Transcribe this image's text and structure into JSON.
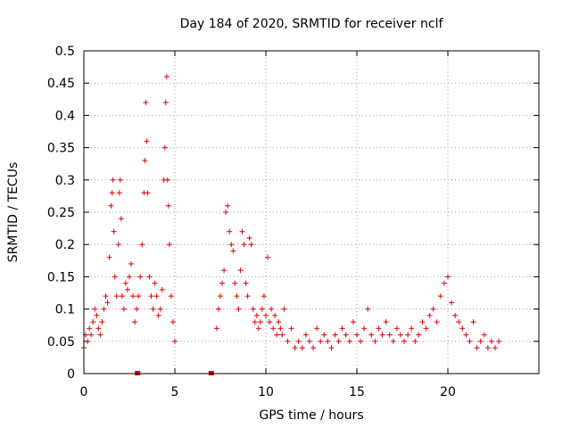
{
  "chart_data": {
    "type": "scatter",
    "title": "Day 184 of 2020, SRMTID for receiver nclf",
    "xlabel": "GPS time / hours",
    "ylabel": "SRMTID / TECUs",
    "xlim": [
      0,
      25
    ],
    "ylim": [
      0,
      0.5
    ],
    "xticks": [
      0,
      5,
      10,
      15,
      20
    ],
    "xtick_labels": [
      "0",
      "5",
      "10",
      "15",
      "20"
    ],
    "yticks": [
      0,
      0.05,
      0.1,
      0.15,
      0.2,
      0.25,
      0.3,
      0.35,
      0.4,
      0.45,
      0.5
    ],
    "ytick_labels": [
      "0",
      "0.05",
      "0.1",
      "0.15",
      "0.2",
      "0.25",
      "0.3",
      "0.35",
      "0.4",
      "0.45",
      "0.5"
    ],
    "grid": true,
    "marker": "plus",
    "color": "#e00000",
    "data_gap_markers_x": [
      2.95,
      7.0
    ],
    "series": [
      {
        "name": "SRMTID",
        "x": [
          0.0,
          0.1,
          0.2,
          0.3,
          0.4,
          0.5,
          0.6,
          0.7,
          0.8,
          0.9,
          1.0,
          1.1,
          1.2,
          1.3,
          1.4,
          1.5,
          1.55,
          1.6,
          1.65,
          1.7,
          1.8,
          1.9,
          1.95,
          2.0,
          2.05,
          2.1,
          2.2,
          2.3,
          2.4,
          2.5,
          2.6,
          2.7,
          2.8,
          2.9,
          3.0,
          3.1,
          3.2,
          3.3,
          3.35,
          3.4,
          3.45,
          3.5,
          3.6,
          3.7,
          3.8,
          3.9,
          4.0,
          4.1,
          4.2,
          4.3,
          4.4,
          4.45,
          4.5,
          4.55,
          4.6,
          4.65,
          4.7,
          4.8,
          4.9,
          5.0,
          7.3,
          7.4,
          7.5,
          7.6,
          7.7,
          7.8,
          7.9,
          8.0,
          8.1,
          8.2,
          8.3,
          8.4,
          8.5,
          8.6,
          8.7,
          8.8,
          8.9,
          9.0,
          9.1,
          9.2,
          9.3,
          9.4,
          9.5,
          9.6,
          9.7,
          9.8,
          9.9,
          10.0,
          10.1,
          10.2,
          10.3,
          10.4,
          10.5,
          10.6,
          10.7,
          10.8,
          10.9,
          11.0,
          11.2,
          11.4,
          11.6,
          11.8,
          12.0,
          12.2,
          12.4,
          12.6,
          12.8,
          13.0,
          13.2,
          13.4,
          13.6,
          13.8,
          14.0,
          14.2,
          14.4,
          14.6,
          14.8,
          15.0,
          15.2,
          15.4,
          15.6,
          15.8,
          16.0,
          16.2,
          16.4,
          16.6,
          16.8,
          17.0,
          17.2,
          17.4,
          17.6,
          17.8,
          18.0,
          18.2,
          18.4,
          18.6,
          18.8,
          19.0,
          19.2,
          19.4,
          19.6,
          19.8,
          20.0,
          20.2,
          20.4,
          20.6,
          20.8,
          21.0,
          21.2,
          21.4,
          21.6,
          21.8,
          22.0,
          22.2,
          22.4,
          22.6,
          22.8
        ],
        "y": [
          0.04,
          0.06,
          0.05,
          0.07,
          0.06,
          0.08,
          0.1,
          0.09,
          0.07,
          0.06,
          0.08,
          0.1,
          0.12,
          0.11,
          0.18,
          0.26,
          0.28,
          0.3,
          0.22,
          0.15,
          0.12,
          0.2,
          0.28,
          0.3,
          0.24,
          0.12,
          0.1,
          0.14,
          0.13,
          0.15,
          0.17,
          0.12,
          0.08,
          0.1,
          0.12,
          0.15,
          0.2,
          0.28,
          0.33,
          0.42,
          0.36,
          0.28,
          0.15,
          0.12,
          0.1,
          0.14,
          0.12,
          0.09,
          0.1,
          0.13,
          0.3,
          0.35,
          0.42,
          0.46,
          0.3,
          0.26,
          0.2,
          0.12,
          0.08,
          0.05,
          0.07,
          0.1,
          0.12,
          0.14,
          0.16,
          0.25,
          0.26,
          0.22,
          0.2,
          0.19,
          0.14,
          0.12,
          0.1,
          0.16,
          0.22,
          0.2,
          0.14,
          0.12,
          0.21,
          0.2,
          0.1,
          0.08,
          0.09,
          0.07,
          0.08,
          0.1,
          0.12,
          0.09,
          0.18,
          0.08,
          0.1,
          0.07,
          0.09,
          0.06,
          0.08,
          0.07,
          0.06,
          0.1,
          0.05,
          0.07,
          0.04,
          0.05,
          0.04,
          0.06,
          0.05,
          0.04,
          0.07,
          0.05,
          0.06,
          0.05,
          0.04,
          0.06,
          0.05,
          0.07,
          0.06,
          0.05,
          0.08,
          0.06,
          0.05,
          0.07,
          0.1,
          0.06,
          0.05,
          0.07,
          0.06,
          0.08,
          0.06,
          0.05,
          0.07,
          0.06,
          0.05,
          0.06,
          0.07,
          0.05,
          0.06,
          0.08,
          0.07,
          0.09,
          0.1,
          0.08,
          0.12,
          0.14,
          0.15,
          0.11,
          0.09,
          0.08,
          0.07,
          0.06,
          0.05,
          0.08,
          0.04,
          0.05,
          0.06,
          0.04,
          0.05,
          0.04,
          0.05
        ]
      }
    ]
  }
}
